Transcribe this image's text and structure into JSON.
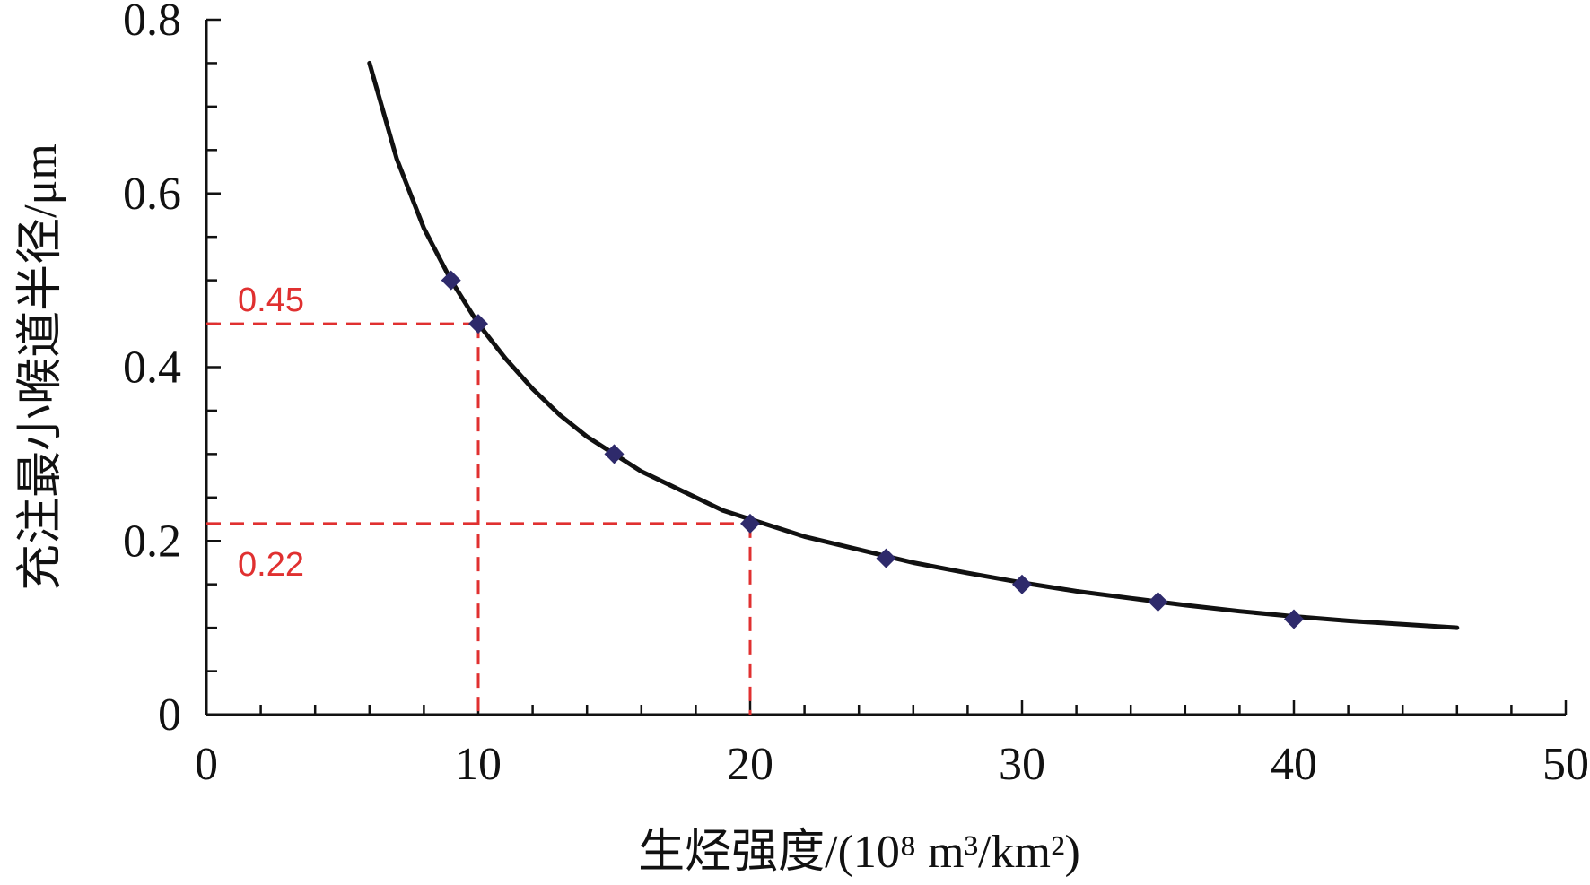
{
  "chart_data": {
    "type": "scatter",
    "xlabel": "生烃强度/(10⁸ m³/km²)",
    "ylabel": "充注最小喉道半径/μm",
    "xlim": [
      0,
      50
    ],
    "ylim": [
      0,
      0.8
    ],
    "x_ticks": [
      "0",
      "10",
      "20",
      "30",
      "40",
      "50"
    ],
    "y_ticks": [
      "0",
      "0.2",
      "0.4",
      "0.6",
      "0.8"
    ],
    "grid": false,
    "legend": "none",
    "series": [
      {
        "kind": "points",
        "marker": "diamond",
        "color": "#2e2a6b",
        "x": [
          9,
          10,
          15,
          20,
          25,
          30,
          35,
          40
        ],
        "y": [
          0.5,
          0.45,
          0.3,
          0.22,
          0.18,
          0.15,
          0.13,
          0.11
        ]
      },
      {
        "kind": "curve",
        "color": "#111111",
        "x": [
          6,
          7,
          8,
          9,
          10,
          11,
          12,
          13,
          14,
          15,
          16,
          17,
          18,
          19,
          20,
          22,
          24,
          26,
          28,
          30,
          32,
          34,
          36,
          38,
          40,
          42,
          44,
          46
        ],
        "y": [
          0.75,
          0.64,
          0.56,
          0.5,
          0.45,
          0.41,
          0.375,
          0.345,
          0.32,
          0.3,
          0.28,
          0.265,
          0.25,
          0.235,
          0.225,
          0.205,
          0.19,
          0.175,
          0.163,
          0.152,
          0.142,
          0.134,
          0.126,
          0.119,
          0.113,
          0.108,
          0.104,
          0.1
        ]
      }
    ],
    "annotations": [
      {
        "label": "0.45",
        "x": 10,
        "y": 0.45,
        "color": "#e03030"
      },
      {
        "label": "0.22",
        "x": 20,
        "y": 0.22,
        "color": "#e03030"
      }
    ]
  }
}
